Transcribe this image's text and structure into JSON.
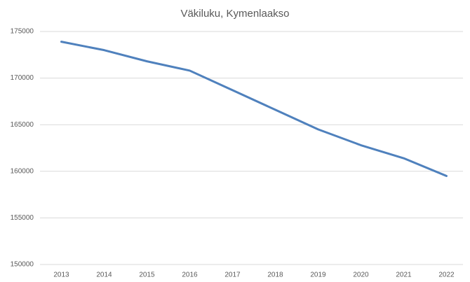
{
  "chart_data": {
    "type": "line",
    "title": "Väkiluku, Kymenlaakso",
    "categories": [
      "2013",
      "2014",
      "2015",
      "2016",
      "2017",
      "2018",
      "2019",
      "2020",
      "2021",
      "2022"
    ],
    "values": [
      173900,
      173000,
      171800,
      170800,
      168700,
      166600,
      164500,
      162800,
      161400,
      159500
    ],
    "color": "#4f81bd",
    "ylim": [
      150000,
      175000
    ],
    "yticks": [
      150000,
      155000,
      160000,
      165000,
      170000,
      175000
    ],
    "grid": true
  }
}
